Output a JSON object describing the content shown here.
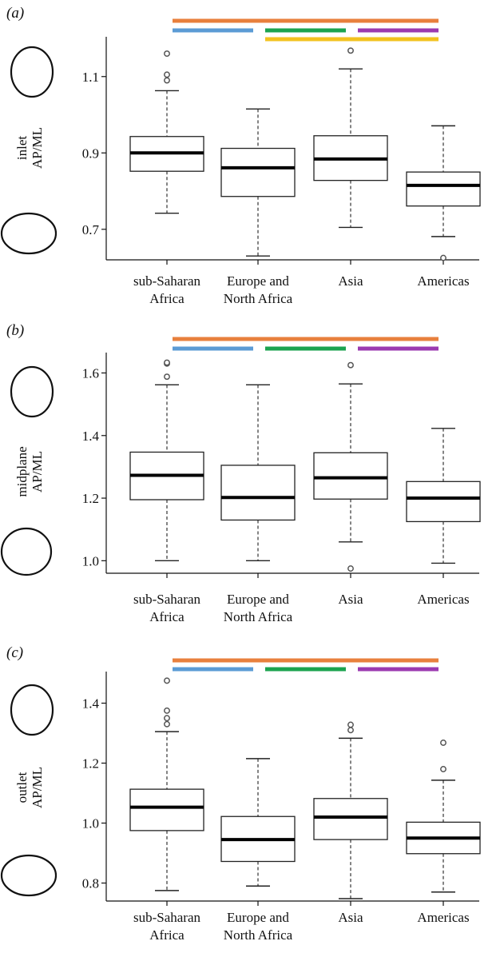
{
  "chart_data": [
    {
      "type": "box",
      "panel_label": "(a)",
      "ylabel_lines": [
        "inlet",
        "AP/ML"
      ],
      "categories": [
        [
          "sub-Saharan",
          "Africa"
        ],
        [
          "Europe and",
          "North Africa"
        ],
        [
          "Asia"
        ],
        [
          "Americas"
        ]
      ],
      "ylim": [
        0.62,
        1.2
      ],
      "yticks": [
        0.7,
        0.9,
        1.1
      ],
      "ytick_labels": [
        "0.7",
        "0.9",
        "1.1"
      ],
      "boxes": [
        {
          "whisker_low": 0.742,
          "q1": 0.852,
          "median": 0.9,
          "q3": 0.943,
          "whisker_high": 1.063,
          "outliers": [
            1.09,
            1.105,
            1.16
          ]
        },
        {
          "whisker_low": 0.63,
          "q1": 0.786,
          "median": 0.861,
          "q3": 0.912,
          "whisker_high": 1.015,
          "outliers": []
        },
        {
          "whisker_low": 0.705,
          "q1": 0.828,
          "median": 0.884,
          "q3": 0.945,
          "whisker_high": 1.12,
          "outliers": [
            1.168
          ]
        },
        {
          "whisker_low": 0.681,
          "q1": 0.761,
          "median": 0.815,
          "q3": 0.85,
          "whisker_high": 0.971,
          "outliers": [
            0.625
          ]
        }
      ],
      "significance_bars": [
        {
          "from": 0,
          "to": 3,
          "color": "#e8803d"
        },
        {
          "from": 0,
          "to": 1,
          "color": "#5b9bd5"
        },
        {
          "from": 1,
          "to": 2,
          "color": "#1ba34f"
        },
        {
          "from": 2,
          "to": 3,
          "color": "#9b3ab0"
        },
        {
          "from": 1,
          "to": 3,
          "color": "#f2c21f"
        }
      ],
      "shape_icons": [
        "tall-ellipse-icon",
        "wide-ellipse-icon"
      ]
    },
    {
      "type": "box",
      "panel_label": "(b)",
      "ylabel_lines": [
        "midplane",
        "AP/ML"
      ],
      "categories": [
        [
          "sub-Saharan",
          "Africa"
        ],
        [
          "Europe and",
          "North Africa"
        ],
        [
          "Asia"
        ],
        [
          "Americas"
        ]
      ],
      "ylim": [
        0.96,
        1.66
      ],
      "yticks": [
        1.0,
        1.2,
        1.4,
        1.6
      ],
      "ytick_labels": [
        "1.0",
        "1.2",
        "1.4",
        "1.6"
      ],
      "boxes": [
        {
          "whisker_low": 1.0,
          "q1": 1.195,
          "median": 1.273,
          "q3": 1.347,
          "whisker_high": 1.562,
          "outliers": [
            1.588,
            1.63,
            1.633
          ]
        },
        {
          "whisker_low": 1.0,
          "q1": 1.13,
          "median": 1.202,
          "q3": 1.305,
          "whisker_high": 1.562,
          "outliers": []
        },
        {
          "whisker_low": 1.06,
          "q1": 1.197,
          "median": 1.265,
          "q3": 1.345,
          "whisker_high": 1.565,
          "outliers": [
            0.975,
            1.625
          ]
        },
        {
          "whisker_low": 0.992,
          "q1": 1.125,
          "median": 1.2,
          "q3": 1.253,
          "whisker_high": 1.423,
          "outliers": []
        }
      ],
      "significance_bars": [
        {
          "from": 0,
          "to": 3,
          "color": "#e8803d"
        },
        {
          "from": 0,
          "to": 1,
          "color": "#5b9bd5"
        },
        {
          "from": 1,
          "to": 2,
          "color": "#1ba34f"
        },
        {
          "from": 2,
          "to": 3,
          "color": "#9b3ab0"
        }
      ],
      "shape_icons": [
        "tall-ellipse-icon",
        "round-ellipse-icon"
      ]
    },
    {
      "type": "box",
      "panel_label": "(c)",
      "ylabel_lines": [
        "outlet",
        "AP/ML"
      ],
      "categories": [
        [
          "sub-Saharan",
          "Africa"
        ],
        [
          "Europe and",
          "North Africa"
        ],
        [
          "Asia"
        ],
        [
          "Americas"
        ]
      ],
      "ylim": [
        0.74,
        1.5
      ],
      "yticks": [
        0.8,
        1.0,
        1.2,
        1.4
      ],
      "ytick_labels": [
        "0.8",
        "1.0",
        "1.2",
        "1.4"
      ],
      "boxes": [
        {
          "whisker_low": 0.775,
          "q1": 0.975,
          "median": 1.053,
          "q3": 1.113,
          "whisker_high": 1.305,
          "outliers": [
            1.33,
            1.35,
            1.375,
            1.475
          ]
        },
        {
          "whisker_low": 0.79,
          "q1": 0.872,
          "median": 0.945,
          "q3": 1.022,
          "whisker_high": 1.215,
          "outliers": []
        },
        {
          "whisker_low": 0.748,
          "q1": 0.945,
          "median": 1.02,
          "q3": 1.082,
          "whisker_high": 1.283,
          "outliers": [
            1.31,
            1.328
          ]
        },
        {
          "whisker_low": 0.77,
          "q1": 0.898,
          "median": 0.95,
          "q3": 1.003,
          "whisker_high": 1.143,
          "outliers": [
            1.18,
            1.268
          ]
        }
      ],
      "significance_bars": [
        {
          "from": 0,
          "to": 3,
          "color": "#e8803d"
        },
        {
          "from": 0,
          "to": 1,
          "color": "#5b9bd5"
        },
        {
          "from": 1,
          "to": 2,
          "color": "#1ba34f"
        },
        {
          "from": 2,
          "to": 3,
          "color": "#9b3ab0"
        }
      ],
      "shape_icons": [
        "tall-ellipse-icon",
        "wide-ellipse-icon"
      ]
    }
  ]
}
